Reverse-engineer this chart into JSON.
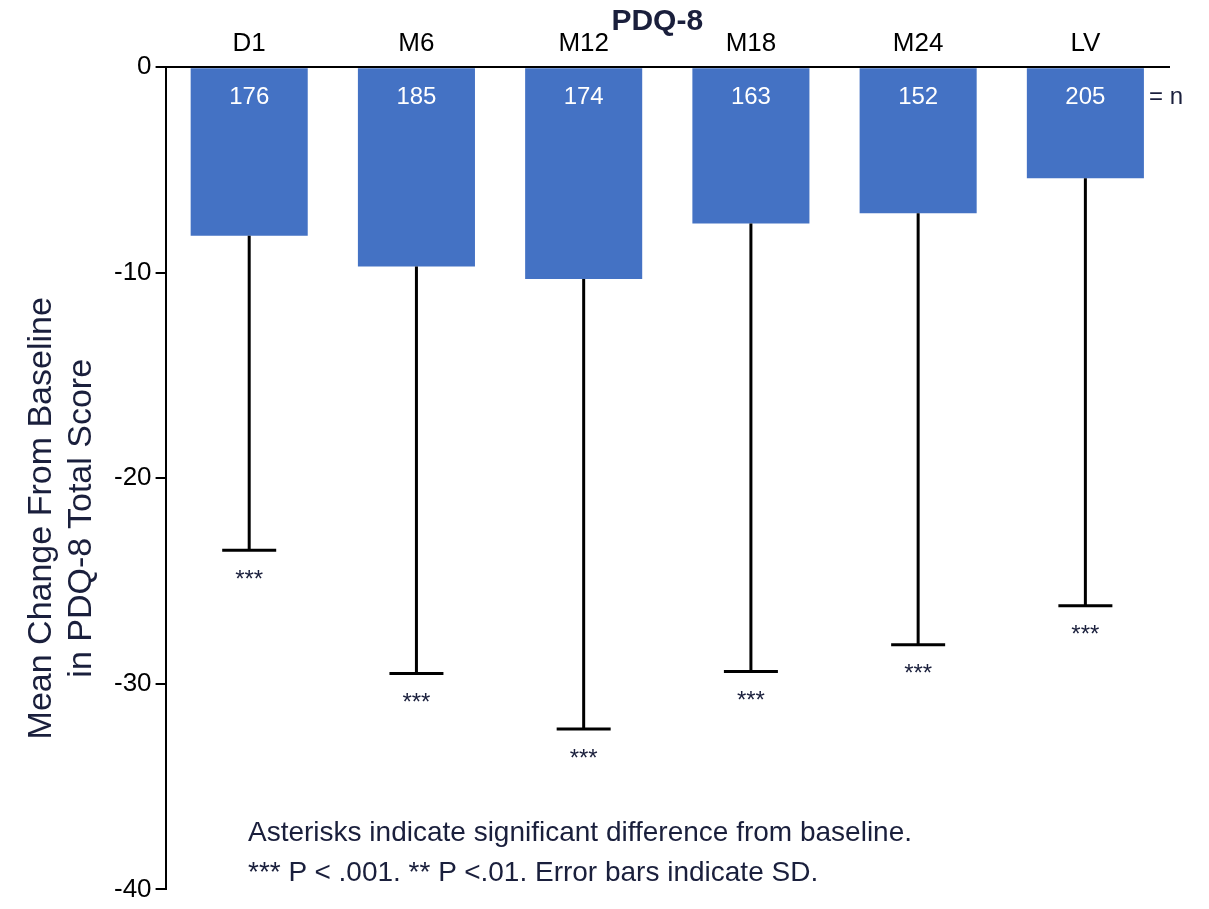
{
  "chart_data": {
    "type": "bar",
    "title": "PDQ-8",
    "ylabel": "Mean Change From Baseline\nin PDQ-8 Total Score",
    "categories": [
      "D1",
      "M6",
      "M12",
      "M18",
      "M24",
      "LV"
    ],
    "values": [
      -8.2,
      -9.7,
      -10.3,
      -7.6,
      -7.1,
      -5.4
    ],
    "errors": [
      [
        -23.5,
        -8.2
      ],
      [
        -29.5,
        -9.7
      ],
      [
        -32.2,
        -10.3
      ],
      [
        -29.4,
        -7.6
      ],
      [
        -28.1,
        -7.1
      ],
      [
        -26.2,
        -5.4
      ]
    ],
    "color": "#4472c4",
    "ylim": [
      -40,
      0
    ],
    "yticks": [
      -40,
      -30,
      -20,
      -10,
      0
    ],
    "grid": false,
    "legend": false,
    "annotations": [
      "176",
      "185",
      "174",
      "163",
      "152",
      "205",
      "= n",
      "***",
      "***",
      "***",
      "***",
      "***",
      "***",
      "Asterisks indicate significant difference from baseline.",
      "*** P < .001. ** P <.01. Error bars indicate SD."
    ]
  }
}
